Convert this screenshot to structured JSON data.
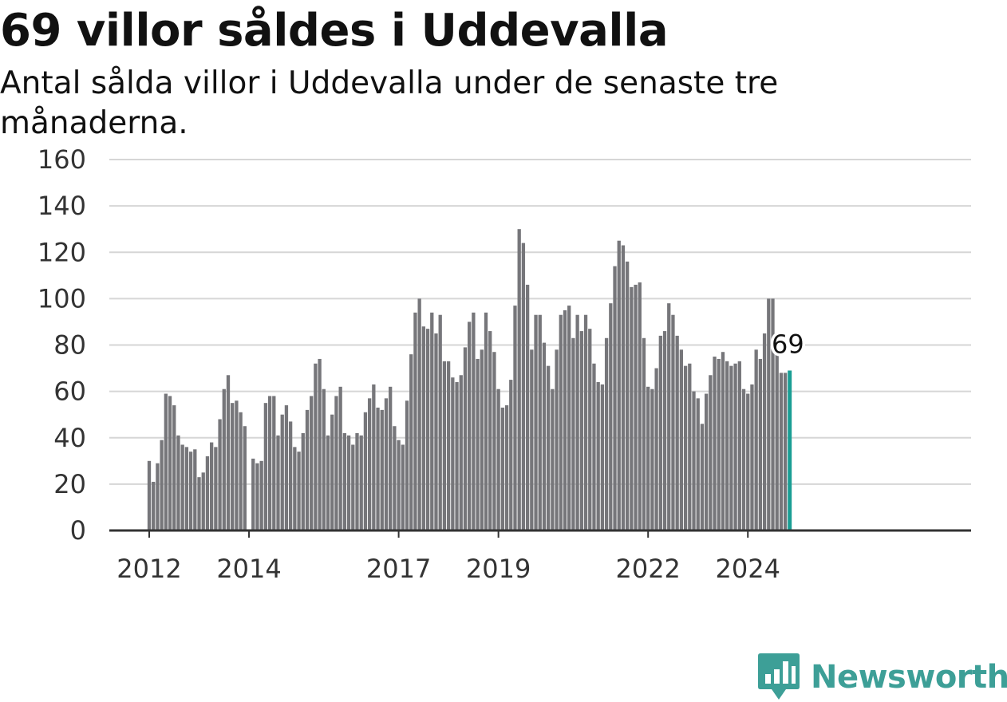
{
  "title": "69 villor såldes i Uddevalla",
  "subtitle": "Antal sålda villor i Uddevalla under de senaste tre månaderna.",
  "brand": {
    "name": "Newsworthy",
    "color": "#3d9f97",
    "icon": "bar-chart-badge-icon"
  },
  "colors": {
    "bar": "#76767a",
    "highlight": "#1a9e94",
    "grid": "#d6d6d6",
    "axis": "#333333",
    "text": "#333333"
  },
  "chart_data": {
    "type": "bar",
    "ylim": [
      0,
      160
    ],
    "yticks": [
      0,
      20,
      40,
      60,
      80,
      100,
      120,
      140,
      160
    ],
    "grid": true,
    "start": "2012-01",
    "x_tick_labels": [
      {
        "label": "2012",
        "month": "2012-01"
      },
      {
        "label": "2014",
        "month": "2014-01"
      },
      {
        "label": "2017",
        "month": "2017-01"
      },
      {
        "label": "2019",
        "month": "2019-01"
      },
      {
        "label": "2022",
        "month": "2022-01"
      },
      {
        "label": "2024",
        "month": "2024-01"
      }
    ],
    "values": [
      30,
      21,
      29,
      39,
      59,
      58,
      54,
      41,
      37,
      36,
      34,
      35,
      23,
      25,
      32,
      38,
      36,
      48,
      61,
      67,
      55,
      56,
      51,
      45,
      null,
      31,
      29,
      30,
      55,
      58,
      58,
      41,
      50,
      54,
      47,
      36,
      34,
      42,
      52,
      58,
      72,
      74,
      61,
      41,
      50,
      58,
      62,
      42,
      41,
      37,
      42,
      41,
      51,
      57,
      63,
      53,
      52,
      57,
      62,
      45,
      39,
      37,
      56,
      76,
      94,
      100,
      88,
      87,
      94,
      85,
      93,
      73,
      73,
      66,
      64,
      67,
      79,
      90,
      94,
      74,
      78,
      94,
      86,
      77,
      61,
      53,
      54,
      65,
      97,
      130,
      124,
      106,
      78,
      93,
      93,
      81,
      71,
      61,
      78,
      93,
      95,
      97,
      83,
      93,
      86,
      93,
      87,
      72,
      64,
      63,
      83,
      98,
      114,
      125,
      123,
      116,
      105,
      106,
      107,
      83,
      62,
      61,
      70,
      84,
      86,
      98,
      93,
      84,
      78,
      71,
      72,
      60,
      57,
      46,
      59,
      67,
      75,
      74,
      77,
      73,
      71,
      72,
      73,
      61,
      59,
      63,
      78,
      74,
      85,
      100,
      100,
      79,
      68,
      68,
      69
    ],
    "highlight_label": "69"
  }
}
